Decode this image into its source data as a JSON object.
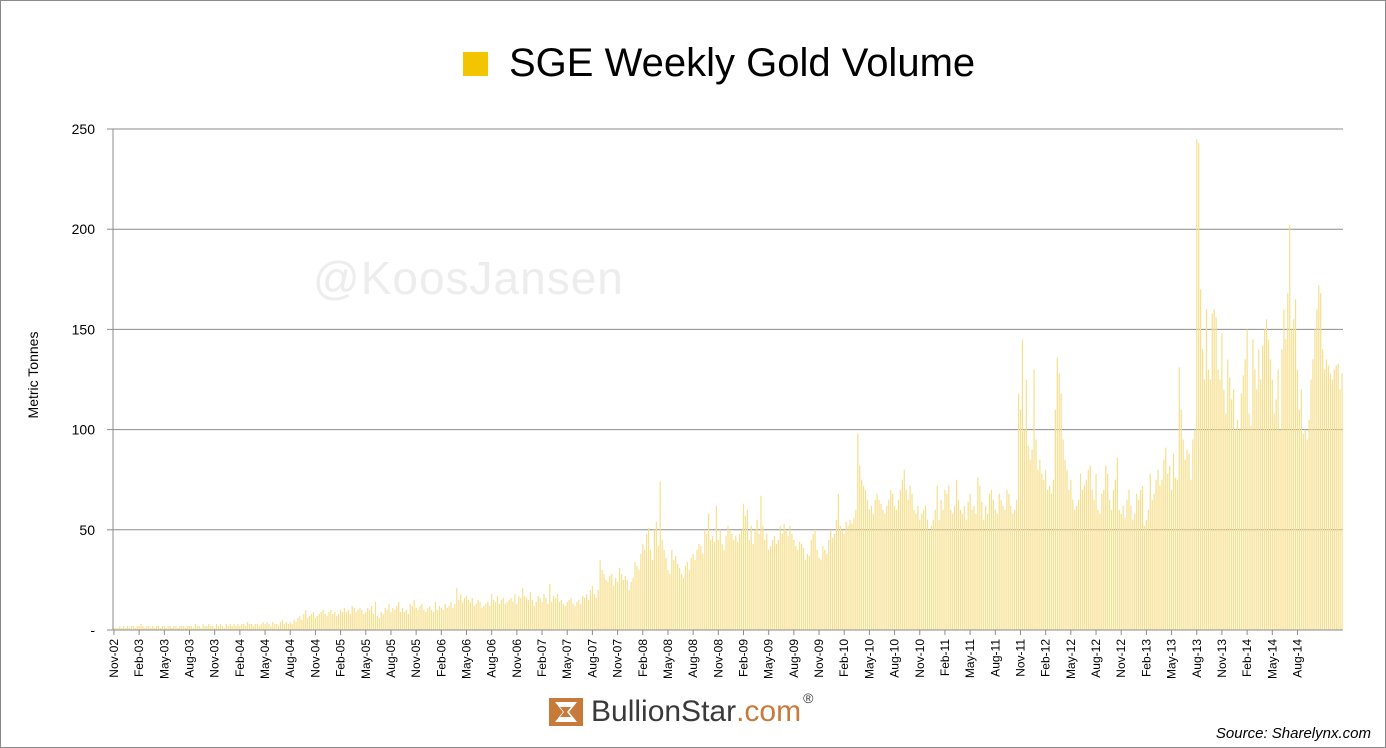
{
  "chart_data": {
    "type": "bar",
    "title": "SGE Weekly Gold Volume",
    "legend": {
      "entries": [
        "SGE Weekly Gold Volume"
      ],
      "placement": "top"
    },
    "xlabel": "",
    "ylabel": "Metric Tonnes",
    "ylim": [
      0,
      250
    ],
    "yticks": [
      {
        "value": 0,
        "label": "-"
      },
      {
        "value": 50,
        "label": "50"
      },
      {
        "value": 100,
        "label": "100"
      },
      {
        "value": 150,
        "label": "150"
      },
      {
        "value": 200,
        "label": "200"
      },
      {
        "value": 250,
        "label": "250"
      }
    ],
    "grid": true,
    "bar_color": "#f7df8c",
    "legend_color": "#f2c500",
    "tick_labels": [
      "Nov-02",
      "Feb-03",
      "May-03",
      "Aug-03",
      "Nov-03",
      "Feb-04",
      "May-04",
      "Aug-04",
      "Nov-04",
      "Feb-05",
      "May-05",
      "Aug-05",
      "Nov-05",
      "Feb-06",
      "May-06",
      "Aug-06",
      "Nov-06",
      "Feb-07",
      "May-07",
      "Aug-07",
      "Nov-07",
      "Feb-08",
      "May-08",
      "Aug-08",
      "Nov-08",
      "Feb-09",
      "May-09",
      "Aug-09",
      "Nov-09",
      "Feb-10",
      "May-10",
      "Aug-10",
      "Nov-10",
      "Feb-11",
      "May-11",
      "Aug-11",
      "Nov-11",
      "Feb-12",
      "May-12",
      "Aug-12",
      "Nov-12",
      "Feb-13",
      "May-13",
      "Aug-13",
      "Nov-13",
      "Feb-14",
      "May-14",
      "Aug-14"
    ],
    "bars_per_period": 13,
    "series": [
      {
        "values": [
          1,
          1,
          1,
          2,
          1,
          2,
          1,
          2,
          1,
          2,
          2,
          1,
          2,
          2,
          3,
          2,
          1,
          2,
          2,
          1,
          2,
          1,
          2,
          2,
          1,
          2,
          2,
          1,
          2,
          2,
          1,
          2,
          2,
          1,
          2,
          2,
          2,
          1,
          2,
          2,
          2,
          1,
          3,
          2,
          2,
          1,
          3,
          2,
          2,
          3,
          2,
          2,
          1,
          3,
          2,
          3,
          2,
          1,
          3,
          2,
          3,
          2,
          3,
          2,
          3,
          2,
          3,
          3,
          2,
          4,
          3,
          3,
          2,
          3,
          3,
          2,
          3,
          4,
          3,
          4,
          3,
          2,
          4,
          3,
          3,
          2,
          4,
          5,
          3,
          4,
          3,
          4,
          3,
          5,
          4,
          6,
          7,
          5,
          8,
          10,
          6,
          7,
          8,
          9,
          6,
          7,
          8,
          9,
          10,
          8,
          7,
          9,
          10,
          8,
          9,
          7,
          8,
          10,
          9,
          11,
          9,
          10,
          8,
          12,
          11,
          9,
          10,
          11,
          10,
          8,
          9,
          11,
          10,
          12,
          8,
          14,
          7,
          6,
          9,
          8,
          11,
          10,
          13,
          9,
          11,
          10,
          12,
          14,
          9,
          11,
          9,
          10,
          8,
          13,
          12,
          15,
          11,
          10,
          12,
          13,
          10,
          9,
          11,
          12,
          10,
          9,
          14,
          10,
          12,
          11,
          10,
          13,
          11,
          12,
          14,
          11,
          13,
          21,
          15,
          18,
          14,
          16,
          17,
          15,
          14,
          16,
          12,
          13,
          15,
          14,
          11,
          12,
          13,
          14,
          12,
          18,
          15,
          14,
          17,
          13,
          15,
          16,
          13,
          14,
          15,
          16,
          14,
          18,
          13,
          17,
          16,
          21,
          17,
          16,
          15,
          19,
          15,
          12,
          14,
          17,
          16,
          14,
          18,
          16,
          13,
          23,
          14,
          17,
          16,
          18,
          14,
          15,
          13,
          12,
          14,
          15,
          16,
          13,
          12,
          14,
          15,
          13,
          17,
          16,
          18,
          15,
          20,
          22,
          18,
          16,
          20,
          35,
          30,
          28,
          25,
          24,
          27,
          28,
          22,
          26,
          24,
          31,
          28,
          25,
          27,
          25,
          20,
          24,
          26,
          34,
          32,
          30,
          38,
          43,
          40,
          48,
          51,
          40,
          35,
          50,
          54,
          42,
          74,
          45,
          40,
          36,
          30,
          28,
          40,
          35,
          37,
          33,
          31,
          28,
          26,
          32,
          34,
          30,
          36,
          38,
          35,
          40,
          43,
          42,
          38,
          50,
          48,
          58,
          45,
          47,
          44,
          62,
          45,
          50,
          43,
          40,
          47,
          52,
          50,
          48,
          45,
          47,
          44,
          48,
          50,
          63,
          57,
          60,
          45,
          52,
          43,
          50,
          55,
          48,
          67,
          52,
          45,
          48,
          40,
          42,
          45,
          47,
          43,
          45,
          52,
          48,
          53,
          50,
          47,
          52,
          48,
          45,
          42,
          40,
          44,
          43,
          41,
          35,
          38,
          37,
          45,
          48,
          50,
          40,
          36,
          35,
          42,
          40,
          38,
          45,
          50,
          46,
          48,
          55,
          68,
          52,
          50,
          48,
          54,
          52,
          55,
          53,
          56,
          60,
          98,
          82,
          75,
          72,
          70,
          65,
          60,
          62,
          58,
          65,
          68,
          65,
          63,
          60,
          58,
          62,
          65,
          70,
          68,
          62,
          60,
          65,
          70,
          75,
          80,
          70,
          65,
          72,
          68,
          60,
          58,
          62,
          55,
          58,
          60,
          62,
          55,
          50,
          52,
          55,
          60,
          72,
          55,
          65,
          60,
          70,
          68,
          72,
          60,
          58,
          62,
          75,
          65,
          60,
          58,
          62,
          55,
          64,
          68,
          60,
          62,
          58,
          76,
          72,
          64,
          55,
          62,
          58,
          68,
          70,
          65,
          60,
          58,
          68,
          65,
          62,
          60,
          70,
          68,
          62,
          58,
          60,
          65,
          118,
          110,
          145,
          100,
          125,
          92,
          85,
          90,
          130,
          95,
          80,
          85,
          78,
          75,
          80,
          70,
          72,
          68,
          75,
          110,
          136,
          128,
          118,
          95,
          85,
          80,
          70,
          75,
          65,
          60,
          62,
          65,
          78,
          70,
          72,
          75,
          80,
          82,
          70,
          65,
          78,
          60,
          58,
          68,
          70,
          82,
          78,
          65,
          60,
          70,
          75,
          86,
          60,
          58,
          62,
          56,
          65,
          70,
          62,
          55,
          58,
          68,
          65,
          70,
          72,
          52,
          55,
          60,
          78,
          65,
          68,
          75,
          80,
          72,
          75,
          85,
          91,
          78,
          82,
          70,
          88,
          76,
          75,
          131,
          110,
          95,
          85,
          90,
          88,
          75,
          95,
          100,
          245,
          243,
          170,
          140,
          125,
          160,
          130,
          125,
          158,
          160,
          156,
          130,
          125,
          148,
          120,
          108,
          135,
          126,
          115,
          120,
          100,
          105,
          100,
          118,
          127,
          135,
          150,
          108,
          102,
          145,
          130,
          120,
          140,
          125,
          142,
          150,
          155,
          145,
          135,
          125,
          108,
          115,
          130,
          100,
          140,
          160,
          145,
          168,
          202,
          150,
          155,
          165,
          130,
          110,
          120,
          98,
          100,
          95,
          105,
          125,
          135,
          150,
          160,
          172,
          168,
          140,
          130,
          135,
          132,
          128,
          125,
          130,
          132,
          133,
          120,
          128
        ]
      }
    ]
  },
  "watermark": "@KoosJansen",
  "brand": {
    "name_main": "BullionStar",
    "name_suffix": ".com",
    "reg": "®"
  },
  "source": "Source: Sharelynx.com"
}
